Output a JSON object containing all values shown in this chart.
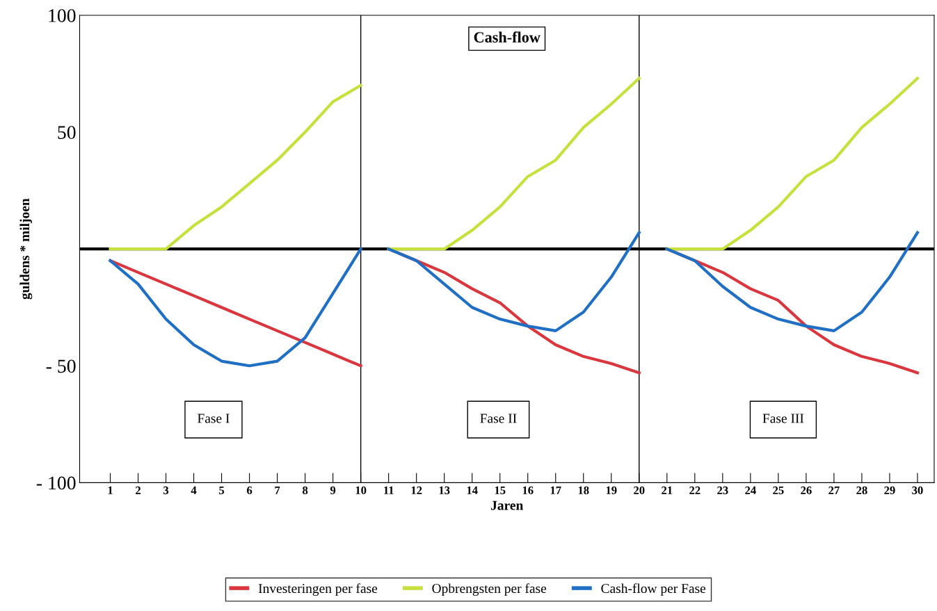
{
  "chart_data": {
    "type": "line",
    "title": "Cash-flow",
    "xlabel": "Jaren",
    "ylabel": "guldens * miljoen",
    "series": [
      {
        "name": "Investeringen per fase",
        "color": "#d9363e",
        "x": [
          1,
          2,
          3,
          4,
          5,
          6,
          7,
          8,
          9,
          10
        ],
        "values": [
          -5,
          -10,
          -15,
          -20,
          -25,
          -30,
          -35,
          -40,
          -45,
          -50
        ]
      },
      {
        "name": "Opbrengsten per fase",
        "color": "#c8e03c",
        "x": [
          1,
          2,
          3,
          4,
          5,
          6,
          7,
          8,
          9,
          10
        ],
        "values": [
          0,
          0,
          0,
          10,
          18,
          28,
          38,
          50,
          63,
          70
        ]
      },
      {
        "name": "Cash-flow per Fase",
        "color": "#1f6fc4",
        "x": [
          1,
          2,
          3,
          4,
          5,
          6,
          7,
          8,
          9,
          10
        ],
        "values": [
          -5,
          -15,
          -30,
          -41,
          -48,
          -50,
          -48,
          -38,
          -19,
          0
        ]
      },
      {
        "color": "#d9363e",
        "x": [
          11,
          12,
          13,
          14,
          15,
          16,
          17,
          18,
          19,
          20
        ],
        "values": [
          0,
          -5,
          -10,
          -17,
          -23,
          -33,
          -41,
          -46,
          -49,
          -53
        ]
      },
      {
        "color": "#c8e03c",
        "x": [
          11,
          12,
          13,
          14,
          15,
          16,
          17,
          18,
          19,
          20
        ],
        "values": [
          0,
          0,
          0,
          8,
          18,
          31,
          38,
          52,
          62,
          73
        ]
      },
      {
        "color": "#1f6fc4",
        "x": [
          11,
          12,
          13,
          14,
          15,
          16,
          17,
          18,
          19,
          20
        ],
        "values": [
          0,
          -5,
          -15,
          -25,
          -30,
          -33,
          -35,
          -27,
          -12,
          7
        ]
      },
      {
        "color": "#d9363e",
        "x": [
          21,
          22,
          23,
          24,
          25,
          26,
          27,
          28,
          29,
          30
        ],
        "values": [
          0,
          -5,
          -10,
          -17,
          -22,
          -33,
          -41,
          -46,
          -49,
          -53
        ]
      },
      {
        "color": "#c8e03c",
        "x": [
          21,
          22,
          23,
          24,
          25,
          26,
          27,
          28,
          29,
          30
        ],
        "values": [
          0,
          0,
          0,
          8,
          18,
          31,
          38,
          52,
          62,
          73
        ]
      },
      {
        "color": "#1f6fc4",
        "x": [
          21,
          22,
          23,
          24,
          25,
          26,
          27,
          28,
          29,
          30
        ],
        "values": [
          0,
          -5,
          -16,
          -25,
          -30,
          -33,
          -35,
          -27,
          -12,
          7
        ]
      }
    ],
    "xlim": [
      -0.1,
      30.6
    ],
    "ylim": [
      -100,
      100
    ],
    "xticks": [
      1,
      2,
      3,
      4,
      5,
      6,
      7,
      8,
      9,
      10,
      11,
      12,
      13,
      14,
      15,
      16,
      17,
      18,
      19,
      20,
      21,
      22,
      23,
      24,
      25,
      26,
      27,
      28,
      29,
      30
    ],
    "yticks": [
      100,
      50,
      {
        "value": -50,
        "label": "- 50"
      },
      {
        "value": -100,
        "label": "- 100"
      }
    ],
    "ref_lines": [
      {
        "axis": "y",
        "value": 0,
        "color": "#000000"
      },
      {
        "axis": "x",
        "value": 10,
        "color": "#000000"
      },
      {
        "axis": "x",
        "value": 20,
        "color": "#000000"
      }
    ],
    "annotations": [
      "Fase I",
      "Fase II",
      "Fase III"
    ],
    "legend": "bottom"
  }
}
